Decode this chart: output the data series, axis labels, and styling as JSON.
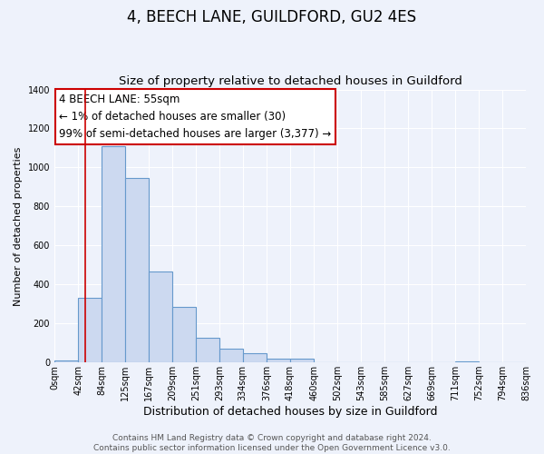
{
  "title": "4, BEECH LANE, GUILDFORD, GU2 4ES",
  "subtitle": "Size of property relative to detached houses in Guildford",
  "xlabel": "Distribution of detached houses by size in Guildford",
  "ylabel": "Number of detached properties",
  "bar_values": [
    10,
    330,
    1110,
    945,
    465,
    285,
    125,
    70,
    47,
    20,
    20,
    0,
    0,
    0,
    0,
    0,
    0,
    5,
    0,
    0
  ],
  "bin_edges": [
    0,
    42,
    84,
    125,
    167,
    209,
    251,
    293,
    334,
    376,
    418,
    460,
    502,
    543,
    585,
    627,
    669,
    711,
    752,
    794,
    836
  ],
  "tick_labels": [
    "0sqm",
    "42sqm",
    "84sqm",
    "125sqm",
    "167sqm",
    "209sqm",
    "251sqm",
    "293sqm",
    "334sqm",
    "376sqm",
    "418sqm",
    "460sqm",
    "502sqm",
    "543sqm",
    "585sqm",
    "627sqm",
    "669sqm",
    "711sqm",
    "752sqm",
    "794sqm",
    "836sqm"
  ],
  "bar_color": "#ccd9f0",
  "bar_edge_color": "#6699cc",
  "vline_x": 55,
  "vline_color": "#cc0000",
  "annotation_title": "4 BEECH LANE: 55sqm",
  "annotation_line1": "← 1% of detached houses are smaller (30)",
  "annotation_line2": "99% of semi-detached houses are larger (3,377) →",
  "annotation_box_color": "#ffffff",
  "annotation_box_edge": "#cc0000",
  "ylim": [
    0,
    1400
  ],
  "yticks": [
    0,
    200,
    400,
    600,
    800,
    1000,
    1200,
    1400
  ],
  "footer_line1": "Contains HM Land Registry data © Crown copyright and database right 2024.",
  "footer_line2": "Contains public sector information licensed under the Open Government Licence v3.0.",
  "background_color": "#eef2fb",
  "grid_color": "#ffffff",
  "title_fontsize": 12,
  "subtitle_fontsize": 9.5,
  "xlabel_fontsize": 9,
  "ylabel_fontsize": 8,
  "tick_fontsize": 7,
  "footer_fontsize": 6.5,
  "annotation_fontsize": 8.5
}
